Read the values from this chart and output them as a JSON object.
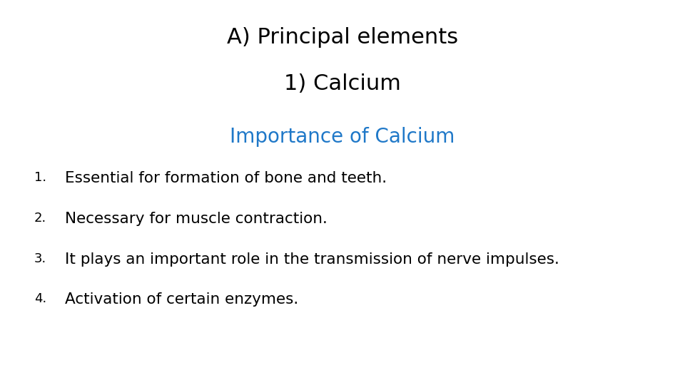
{
  "title_line1": "A) Principal elements",
  "title_line2": "1) Calcium",
  "subtitle": "Importance of Calcium",
  "title_color": "#000000",
  "subtitle_color": "#1F78C8",
  "items": [
    "Essential for formation of bone and teeth.",
    "Necessary for muscle contraction.",
    "It plays an important role in the transmission of nerve impulses.",
    "Activation of certain enzymes."
  ],
  "item_color": "#000000",
  "background_color": "#ffffff",
  "title_fontsize": 22,
  "subtitle_fontsize": 20,
  "item_fontsize": 15.5,
  "number_fontsize": 13
}
